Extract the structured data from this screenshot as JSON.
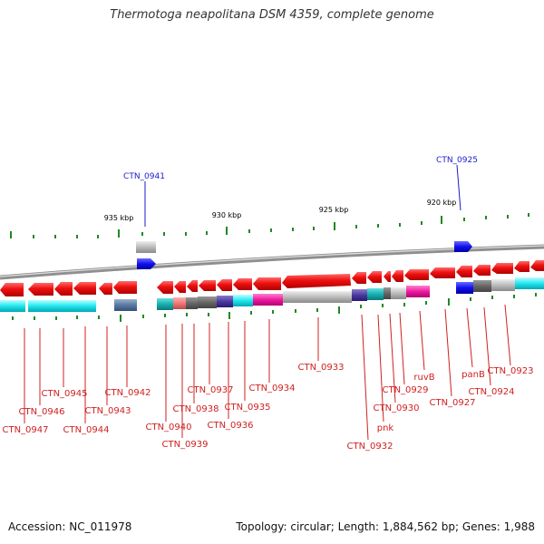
{
  "title": "Thermotoga neapolitana DSM 4359, complete genome",
  "footer": {
    "accession": "Accession: NC_011978",
    "topology": "Topology: circular; Length: 1,884,562 bp; Genes: 1,988"
  },
  "colors": {
    "forward_gene": "#e8121a",
    "highlight_gene": "#1a1aee",
    "locus_label_red": "#d02020",
    "locus_label_blue": "#1a1acc",
    "tick_green": "#228822",
    "backbone": "#9a9a9a"
  },
  "scale_ticks": [
    {
      "label": "935 kbp"
    },
    {
      "label": "930 kbp"
    },
    {
      "label": "925 kbp"
    },
    {
      "label": "920 kbp"
    }
  ],
  "highlighted_genes": [
    {
      "label": "CTN_0941"
    },
    {
      "label": "CTN_0925"
    }
  ],
  "gene_labels": [
    {
      "label": "CTN_0947"
    },
    {
      "label": "CTN_0946"
    },
    {
      "label": "CTN_0945"
    },
    {
      "label": "CTN_0944"
    },
    {
      "label": "CTN_0943"
    },
    {
      "label": "CTN_0942"
    },
    {
      "label": "CTN_0940"
    },
    {
      "label": "CTN_0939"
    },
    {
      "label": "CTN_0938"
    },
    {
      "label": "CTN_0937"
    },
    {
      "label": "CTN_0936"
    },
    {
      "label": "CTN_0935"
    },
    {
      "label": "CTN_0934"
    },
    {
      "label": "CTN_0933"
    },
    {
      "label": "CTN_0932"
    },
    {
      "label": "pnk"
    },
    {
      "label": "CTN_0930"
    },
    {
      "label": "CTN_0929"
    },
    {
      "label": "ruvB"
    },
    {
      "label": "CTN_0927"
    },
    {
      "label": "panB"
    },
    {
      "label": "CTN_0924"
    },
    {
      "label": "CTN_0923"
    }
  ]
}
